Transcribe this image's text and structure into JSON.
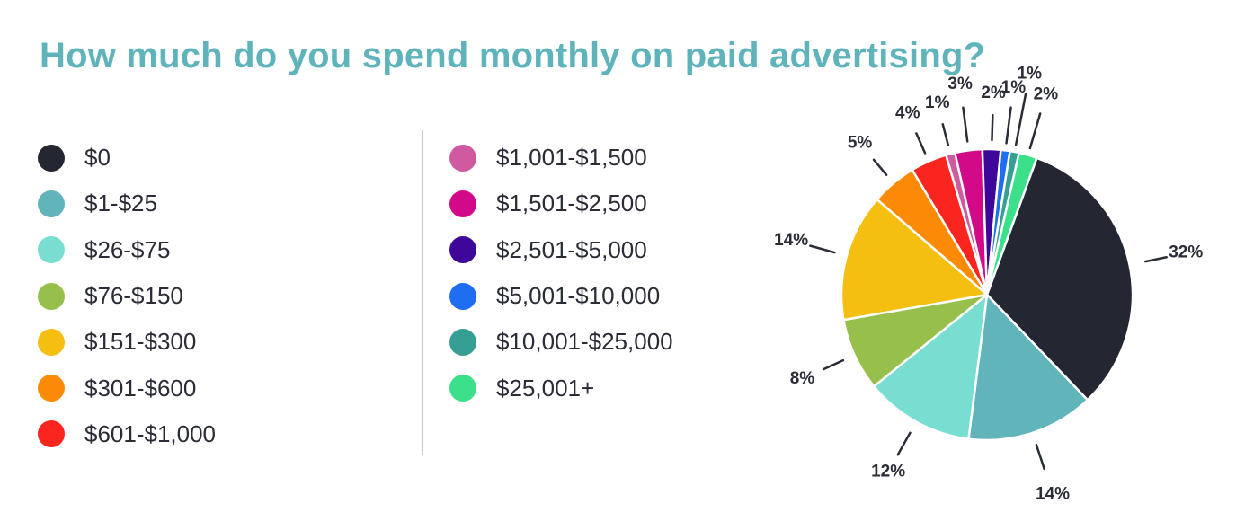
{
  "chart_data": {
    "type": "pie",
    "title": "How much do you spend monthly on paid advertising?",
    "slices": [
      {
        "label": "$0",
        "value": 32,
        "color": "#242631"
      },
      {
        "label": "$1-$25",
        "value": 14,
        "color": "#62b4bb"
      },
      {
        "label": "$26-$75",
        "value": 12,
        "color": "#78ded2"
      },
      {
        "label": "$76-$150",
        "value": 8,
        "color": "#96c04b"
      },
      {
        "label": "$151-$300",
        "value": 14,
        "color": "#f4bf10"
      },
      {
        "label": "$301-$600",
        "value": 5,
        "color": "#fb8b05"
      },
      {
        "label": "$601-$1,000",
        "value": 4,
        "color": "#fb2520"
      },
      {
        "label": "$1,001-$1,500",
        "value": 1,
        "color": "#cf5a9f"
      },
      {
        "label": "$1,501-$2,500",
        "value": 3,
        "color": "#d20a89"
      },
      {
        "label": "$2,501-$5,000",
        "value": 2,
        "color": "#3e0699"
      },
      {
        "label": "$5,001-$10,000",
        "value": 1,
        "color": "#1d6ef1"
      },
      {
        "label": "$10,001-$25,000",
        "value": 1,
        "color": "#359f93"
      },
      {
        "label": "$25,001+",
        "value": 2,
        "color": "#3ce08b"
      }
    ],
    "value_labels": [
      "32%",
      "14%",
      "12%",
      "8%",
      "14%",
      "5%",
      "4%",
      "1%",
      "3%",
      "2%",
      "1%",
      "1%",
      "2%"
    ],
    "legend_placement": "left, two columns"
  }
}
